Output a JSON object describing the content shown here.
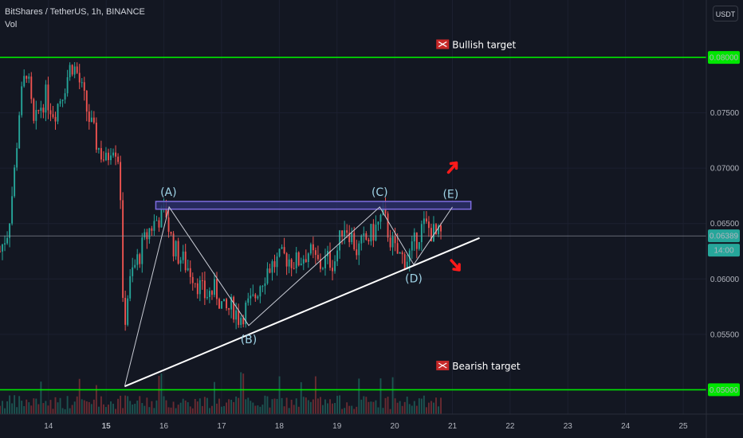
{
  "header": {
    "title": "BitShares / TetherUS, 1h, BINANCE",
    "indicator": "Vol",
    "currency_button": "USDT"
  },
  "colors": {
    "background": "#131722",
    "up": "#26a69a",
    "down": "#ef5350",
    "target_line": "#00e600",
    "trend_line": "#ffffff",
    "wave_line": "#c8cbd4",
    "resistance_box_fill": "#2a2e66",
    "resistance_box_stroke": "#7d6ce0",
    "annotation_text": "#9fd3e6",
    "arrow": "#ff1a1a"
  },
  "chart_data": {
    "type": "candlestick",
    "symbol": "BitShares / TetherUS",
    "interval": "1h",
    "exchange": "BINANCE",
    "y_axis": {
      "ticks": [
        0.055,
        0.06,
        0.065,
        0.07,
        0.075,
        0.08
      ],
      "tick_labels": [
        "0.05500",
        "0.06000",
        "0.06500",
        "0.07000",
        "0.07500",
        "0.08000"
      ],
      "ylim": [
        0.0478,
        0.0836
      ]
    },
    "x_axis": {
      "ticks": [
        14,
        15,
        16,
        17,
        18,
        19,
        20,
        21,
        22,
        23,
        24,
        25
      ],
      "tick_labels": [
        "14",
        "15",
        "16",
        "17",
        "18",
        "19",
        "20",
        "21",
        "22",
        "23",
        "24",
        "25"
      ],
      "bold_ticks": [
        "15"
      ],
      "xlim": [
        13.16,
        25.4
      ]
    },
    "price_labels": [
      {
        "value": 0.08,
        "text": "0.08000",
        "color": "#00e600"
      },
      {
        "value": 0.05,
        "text": "0.05000",
        "color": "#00e600"
      },
      {
        "value": 0.06389,
        "text": "0.06389",
        "color": "#26a69a"
      }
    ],
    "countdown": "14:00",
    "last_price": 0.06389,
    "horizontal_levels": [
      {
        "name": "Bullish target",
        "value": 0.08
      },
      {
        "name": "Bearish target",
        "value": 0.05
      }
    ],
    "resistance_zone": {
      "x_start": 15.86,
      "x_end": 21.32,
      "y_low": 0.0663,
      "y_high": 0.067
    },
    "trend_line": {
      "x": [
        15.32,
        21.47
      ],
      "y": [
        0.0503,
        0.0637
      ]
    },
    "wave_path": {
      "x": [
        15.32,
        16.09,
        17.47,
        19.74,
        20.33,
        21.0
      ],
      "y": [
        0.0503,
        0.0665,
        0.0558,
        0.0665,
        0.0613,
        0.0665
      ]
    },
    "wave_labels": [
      {
        "text": "(A)",
        "x": 16.08,
        "y": 0.0675
      },
      {
        "text": "(B)",
        "x": 17.47,
        "y": 0.0542
      },
      {
        "text": "(C)",
        "x": 19.74,
        "y": 0.0675
      },
      {
        "text": "(D)",
        "x": 20.33,
        "y": 0.0597
      },
      {
        "text": "(E)",
        "x": 20.97,
        "y": 0.0673
      }
    ],
    "target_labels": [
      {
        "text": "Bullish target",
        "x": 20.72,
        "y": 0.0809
      },
      {
        "text": "Bearish target",
        "x": 20.72,
        "y": 0.0519
      }
    ],
    "arrows": [
      {
        "direction": "up",
        "x": 21.0,
        "y": 0.0702
      },
      {
        "direction": "down",
        "x": 21.05,
        "y": 0.0611
      }
    ],
    "price_path": {
      "x": [
        13.16,
        13.3,
        13.4,
        13.5,
        13.62,
        13.75,
        13.85,
        13.95,
        14.1,
        14.25,
        14.4,
        14.5,
        14.7,
        14.85,
        15.0,
        15.1,
        15.2,
        15.25,
        15.3,
        15.35,
        15.45,
        15.6,
        15.75,
        15.9,
        16.05,
        16.1,
        16.2,
        16.35,
        16.5,
        16.7,
        16.9,
        17.05,
        17.2,
        17.3,
        17.45,
        17.55,
        17.65,
        17.8,
        17.95,
        18.1,
        18.3,
        18.5,
        18.7,
        18.85,
        18.95,
        19.05,
        19.1,
        19.2,
        19.35,
        19.45,
        19.6,
        19.7,
        19.8,
        19.9,
        20.0,
        20.1,
        20.2,
        20.3,
        20.4,
        20.5,
        20.6,
        20.72,
        20.8
      ],
      "y": [
        0.0625,
        0.0645,
        0.069,
        0.0755,
        0.079,
        0.0735,
        0.0755,
        0.0765,
        0.075,
        0.077,
        0.0795,
        0.0785,
        0.0745,
        0.072,
        0.0705,
        0.0725,
        0.0715,
        0.0675,
        0.0545,
        0.058,
        0.0605,
        0.0625,
        0.0645,
        0.0655,
        0.066,
        0.064,
        0.0625,
        0.0615,
        0.0605,
        0.0585,
        0.059,
        0.057,
        0.0575,
        0.0565,
        0.0575,
        0.058,
        0.0595,
        0.061,
        0.0615,
        0.062,
        0.0615,
        0.0625,
        0.0612,
        0.0618,
        0.0615,
        0.0635,
        0.065,
        0.0645,
        0.0625,
        0.0632,
        0.064,
        0.0648,
        0.0658,
        0.064,
        0.0625,
        0.062,
        0.0618,
        0.0625,
        0.064,
        0.0648,
        0.0645,
        0.0638,
        0.0639
      ]
    }
  }
}
